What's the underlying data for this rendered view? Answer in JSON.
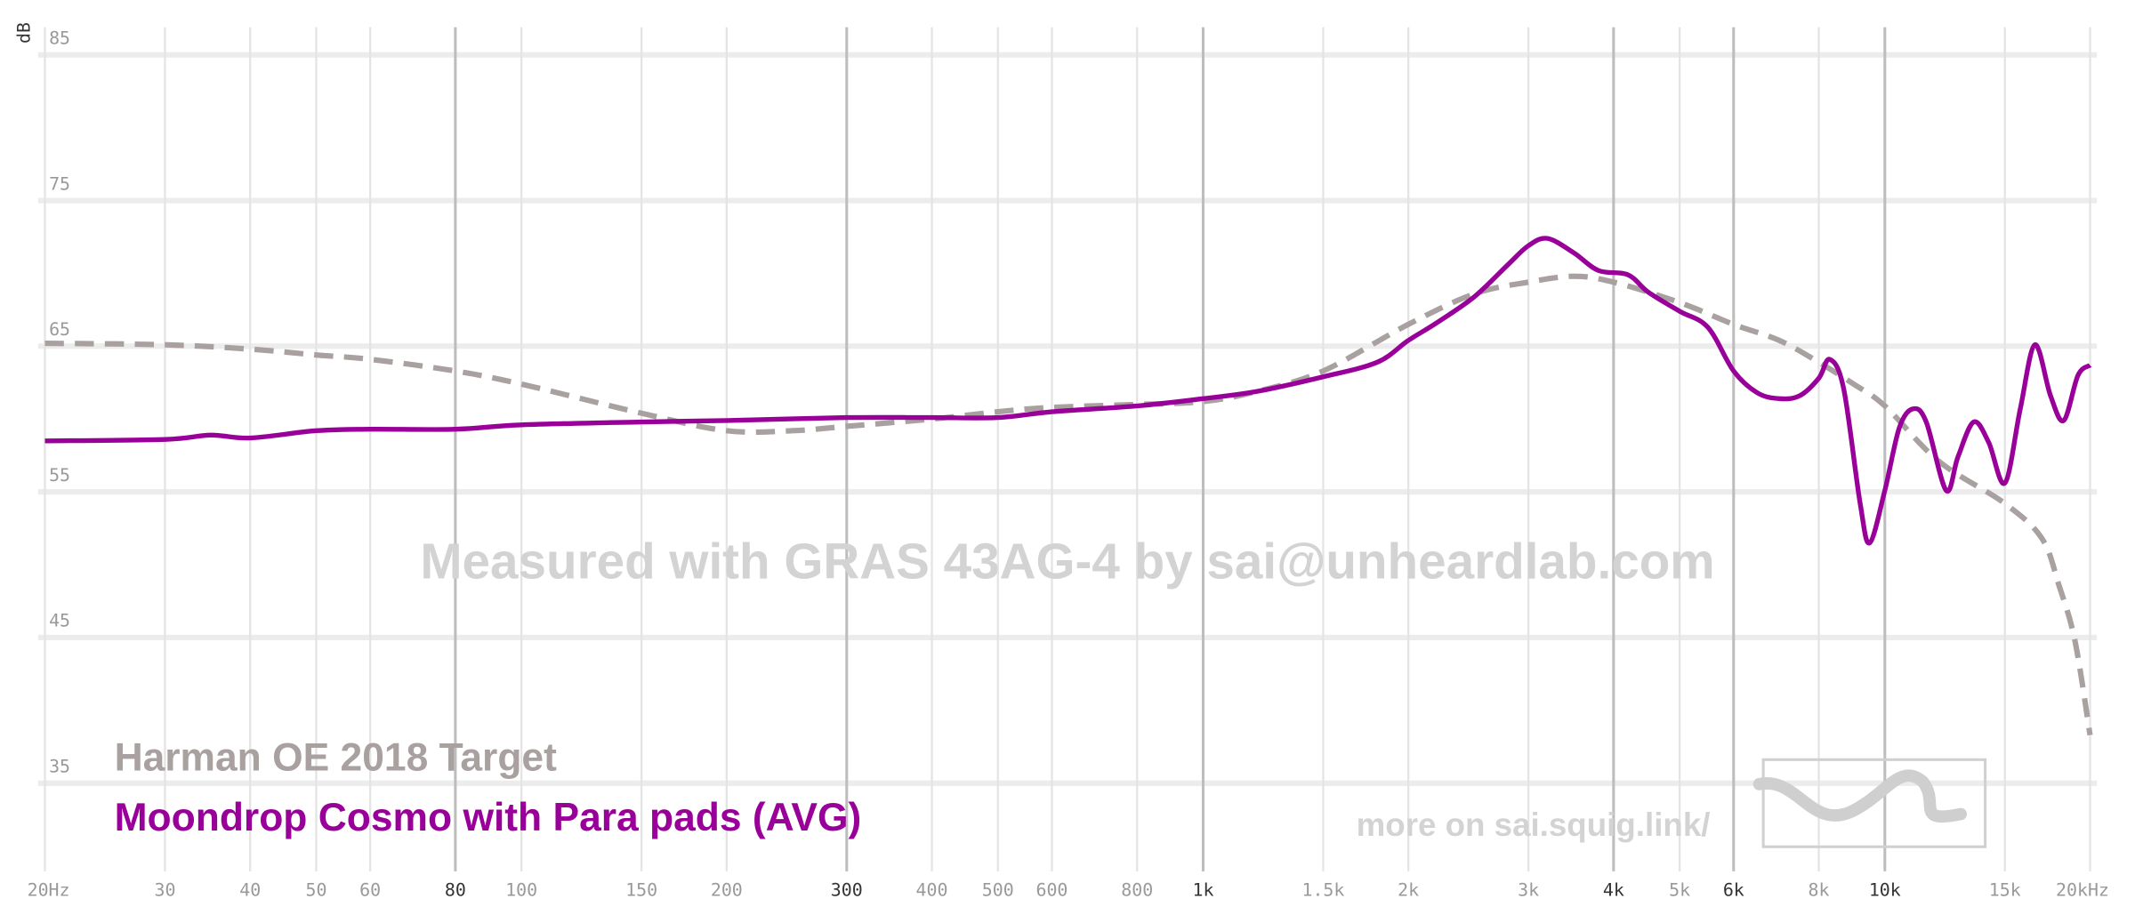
{
  "chart_data": {
    "type": "line",
    "y_label": "dB",
    "watermark": "Measured with GRAS 43AG-4 by sai@unheardlab.com",
    "footer": "more on sai.squig.link/",
    "log_x": true,
    "grid": true,
    "xlim": [
      20,
      20000
    ],
    "ylim": [
      29.7,
      86.9
    ],
    "xticks": [
      {
        "value": 20,
        "label": "20Hz"
      },
      30,
      40,
      50,
      60,
      80,
      100,
      150,
      200,
      300,
      400,
      500,
      600,
      800,
      {
        "value": 1000,
        "label": "1k"
      },
      {
        "value": 1500,
        "label": "1.5k"
      },
      {
        "value": 2000,
        "label": "2k"
      },
      {
        "value": 3000,
        "label": "3k"
      },
      {
        "value": 4000,
        "label": "4k"
      },
      {
        "value": 5000,
        "label": "5k"
      },
      {
        "value": 6000,
        "label": "6k"
      },
      {
        "value": 8000,
        "label": "8k"
      },
      {
        "value": 10000,
        "label": "10k"
      },
      {
        "value": 15000,
        "label": "15k"
      },
      {
        "value": 20000,
        "label": "20kHz"
      }
    ],
    "strong_xticks": [
      5,
      9,
      14,
      18,
      20,
      22
    ],
    "yticks": [
      35,
      45,
      55,
      65,
      75,
      85
    ],
    "series": [
      {
        "name": "Harman OE 2018 Target",
        "color": "#a9a0a0",
        "dashed": true,
        "x": [
          20,
          30,
          40,
          50,
          60,
          80,
          100,
          150,
          200,
          250,
          300,
          400,
          500,
          600,
          800,
          1000,
          1200,
          1500,
          2000,
          2500,
          3000,
          3500,
          4000,
          5000,
          6000,
          7000,
          8000,
          9000,
          10000,
          12000,
          15000,
          17000,
          18000,
          19000,
          20000
        ],
        "values": [
          65.2,
          65.1,
          64.8,
          64.4,
          64.1,
          63.3,
          62.4,
          60.4,
          59.2,
          59.2,
          59.5,
          60.0,
          60.5,
          60.8,
          61.0,
          61.2,
          61.9,
          63.3,
          66.5,
          68.6,
          69.4,
          69.8,
          69.4,
          68.0,
          66.5,
          65.4,
          63.9,
          62.4,
          60.9,
          57.1,
          54.2,
          51.8,
          48.6,
          44.8,
          38.3
        ]
      },
      {
        "name": "Moondrop Cosmo with Para pads (AVG)",
        "color": "#990099",
        "dashed": false,
        "x": [
          20,
          30,
          35,
          40,
          50,
          60,
          80,
          100,
          150,
          200,
          300,
          400,
          500,
          600,
          800,
          1000,
          1200,
          1500,
          1800,
          2000,
          2200,
          2500,
          2800,
          3000,
          3200,
          3500,
          3800,
          4200,
          4500,
          5000,
          5500,
          6000,
          6500,
          7000,
          7500,
          8000,
          8300,
          8700,
          9200,
          9500,
          10000,
          10500,
          11000,
          11500,
          12300,
          12800,
          13500,
          14200,
          15000,
          15800,
          16600,
          17500,
          18300,
          19200,
          20000
        ],
        "values": [
          58.5,
          58.6,
          58.9,
          58.7,
          59.2,
          59.3,
          59.3,
          59.6,
          59.8,
          59.9,
          60.1,
          60.1,
          60.1,
          60.5,
          60.9,
          61.4,
          61.9,
          62.9,
          63.9,
          65.4,
          66.6,
          68.4,
          70.6,
          71.9,
          72.4,
          71.4,
          70.2,
          69.9,
          68.7,
          67.4,
          66.3,
          63.3,
          61.8,
          61.4,
          61.6,
          62.8,
          64.1,
          62.1,
          54.2,
          51.5,
          55.1,
          59.4,
          60.7,
          59.8,
          55.1,
          57.4,
          59.8,
          58.4,
          55.6,
          60.7,
          65.1,
          61.6,
          59.9,
          63.0,
          63.7
        ]
      }
    ]
  }
}
